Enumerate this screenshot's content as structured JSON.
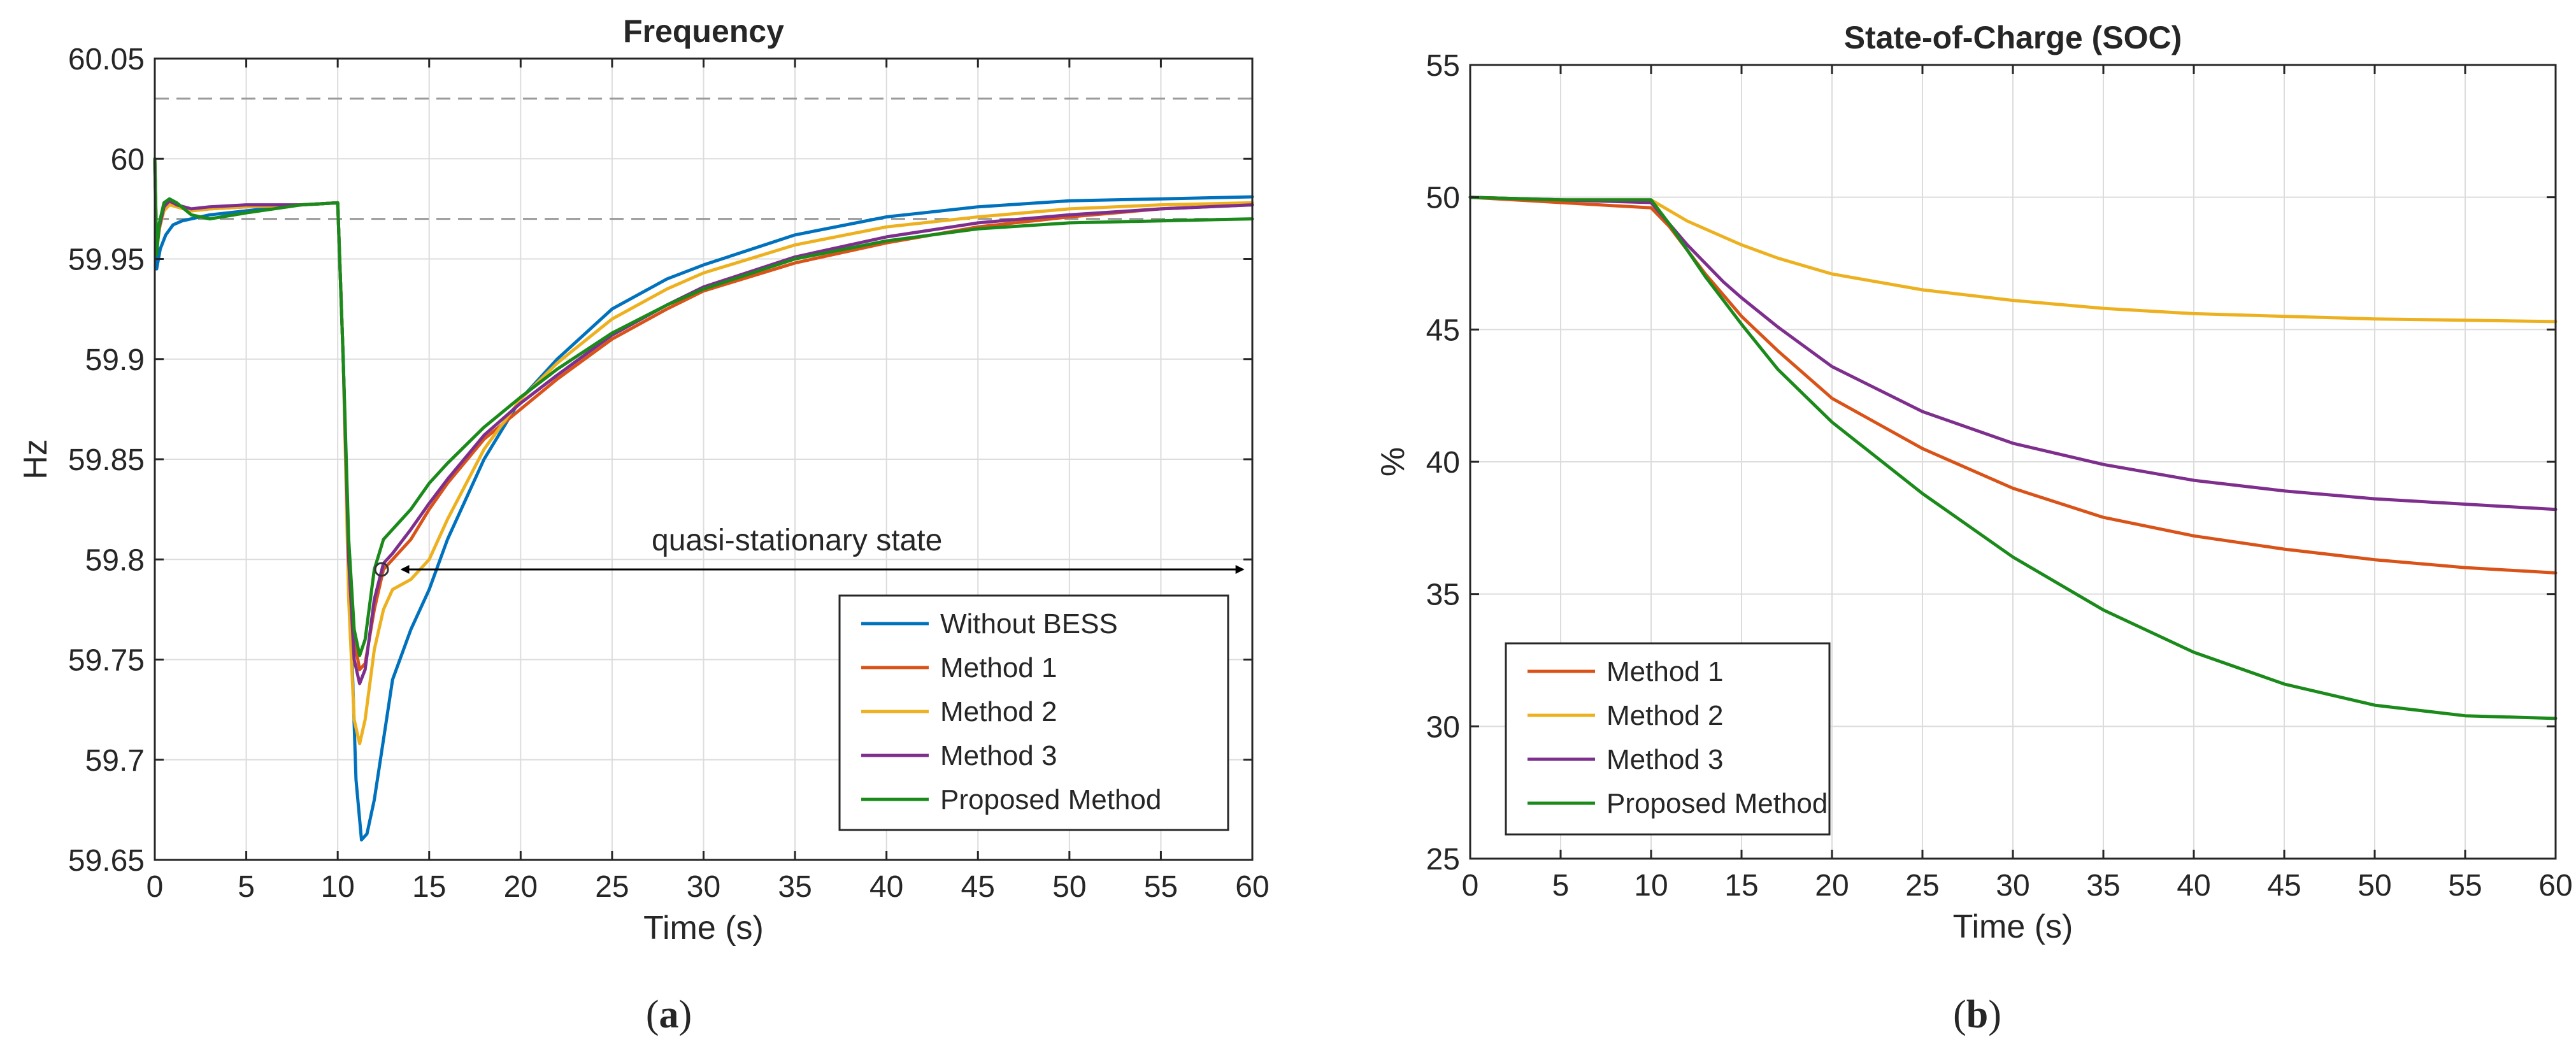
{
  "chart_data": [
    {
      "type": "line",
      "panel_label": "a",
      "title": "Frequency",
      "xlabel": "Time (s)",
      "ylabel": "Hz",
      "xlim": [
        0,
        60
      ],
      "ylim": [
        59.65,
        60.05
      ],
      "xticks": [
        0,
        5,
        10,
        15,
        20,
        25,
        30,
        35,
        40,
        45,
        50,
        55,
        60
      ],
      "xtick_labels": [
        "0",
        "5",
        "10",
        "15",
        "20",
        "25",
        "30",
        "35",
        "40",
        "45",
        "50",
        "55",
        "60"
      ],
      "yticks": [
        59.65,
        59.7,
        59.75,
        59.8,
        59.85,
        59.9,
        59.95,
        60,
        60.05
      ],
      "ytick_labels": [
        "59.65",
        "59.7",
        "59.75",
        "59.8",
        "59.85",
        "59.9",
        "59.95",
        "60",
        "60.05"
      ],
      "grid": true,
      "legend_position": "bottom-right",
      "reference_lines": [
        60.03,
        59.97
      ],
      "annotation": {
        "text": "quasi-stationary state",
        "arrow_from_x": 13.5,
        "arrow_to_x": 59.5,
        "arrow_y": 59.795,
        "marker_x": 12.4,
        "marker_y": 59.795
      },
      "series": [
        {
          "name": "Without BESS",
          "color": "#0072BD",
          "x": [
            0,
            0.1,
            0.3,
            0.6,
            1,
            1.5,
            2,
            3,
            5,
            8,
            10,
            10.3,
            10.6,
            11,
            11.3,
            11.6,
            12,
            12.5,
            13,
            14,
            15,
            16,
            18,
            20,
            22,
            25,
            28,
            30,
            35,
            40,
            45,
            50,
            55,
            60
          ],
          "y": [
            60.0,
            59.945,
            59.955,
            59.962,
            59.967,
            59.969,
            59.97,
            59.972,
            59.974,
            59.977,
            59.978,
            59.9,
            59.8,
            59.69,
            59.66,
            59.663,
            59.68,
            59.71,
            59.74,
            59.765,
            59.785,
            59.81,
            59.85,
            59.88,
            59.9,
            59.925,
            59.94,
            59.947,
            59.962,
            59.971,
            59.976,
            59.979,
            59.98,
            59.981
          ]
        },
        {
          "name": "Method 1",
          "color": "#D95319",
          "x": [
            0,
            0.1,
            0.25,
            0.5,
            0.8,
            1.2,
            2,
            3,
            5,
            8,
            10,
            10.3,
            10.6,
            10.9,
            11.2,
            11.5,
            12,
            12.5,
            13,
            14,
            15,
            16,
            18,
            20,
            22,
            25,
            28,
            30,
            35,
            40,
            45,
            50,
            55,
            60
          ],
          "y": [
            60.0,
            59.955,
            59.965,
            59.975,
            59.978,
            59.976,
            59.974,
            59.975,
            59.976,
            59.977,
            59.978,
            59.9,
            59.8,
            59.76,
            59.745,
            59.748,
            59.775,
            59.795,
            59.8,
            59.81,
            59.825,
            59.838,
            59.86,
            59.875,
            59.89,
            59.91,
            59.925,
            59.934,
            59.948,
            59.958,
            59.966,
            59.971,
            59.975,
            59.977
          ]
        },
        {
          "name": "Method 2",
          "color": "#EDB120",
          "x": [
            0,
            0.1,
            0.25,
            0.5,
            0.8,
            1.2,
            2,
            3,
            5,
            8,
            10,
            10.3,
            10.6,
            10.9,
            11.2,
            11.5,
            12,
            12.5,
            13,
            14,
            15,
            16,
            18,
            20,
            22,
            25,
            28,
            30,
            35,
            40,
            45,
            50,
            55,
            60
          ],
          "y": [
            60.0,
            59.955,
            59.965,
            59.974,
            59.977,
            59.976,
            59.974,
            59.975,
            59.976,
            59.977,
            59.978,
            59.9,
            59.78,
            59.72,
            59.708,
            59.72,
            59.755,
            59.775,
            59.785,
            59.79,
            59.8,
            59.82,
            59.855,
            59.88,
            59.898,
            59.92,
            59.935,
            59.943,
            59.957,
            59.966,
            59.971,
            59.975,
            59.977,
            59.978
          ]
        },
        {
          "name": "Method 3",
          "color": "#7E2F8E",
          "x": [
            0,
            0.1,
            0.25,
            0.5,
            0.8,
            1.2,
            2,
            3,
            5,
            8,
            10,
            10.3,
            10.6,
            10.9,
            11.2,
            11.5,
            12,
            12.5,
            13,
            14,
            15,
            16,
            18,
            20,
            22,
            25,
            28,
            30,
            35,
            40,
            45,
            50,
            55,
            60
          ],
          "y": [
            60.0,
            59.955,
            59.966,
            59.976,
            59.979,
            59.977,
            59.975,
            59.976,
            59.977,
            59.977,
            59.978,
            59.9,
            59.8,
            59.75,
            59.738,
            59.745,
            59.78,
            59.798,
            59.803,
            59.815,
            59.828,
            59.84,
            59.862,
            59.878,
            59.892,
            59.912,
            59.927,
            59.936,
            59.951,
            59.961,
            59.968,
            59.972,
            59.975,
            59.977
          ]
        },
        {
          "name": "Proposed Method",
          "color": "#1A8A1A",
          "x": [
            0,
            0.1,
            0.25,
            0.5,
            0.8,
            1.2,
            2,
            3,
            5,
            8,
            10,
            10.3,
            10.6,
            10.9,
            11.2,
            11.5,
            12,
            12.5,
            13,
            14,
            15,
            16,
            18,
            20,
            22,
            25,
            28,
            30,
            35,
            40,
            45,
            50,
            55,
            60
          ],
          "y": [
            60.0,
            59.952,
            59.968,
            59.978,
            59.98,
            59.978,
            59.972,
            59.97,
            59.973,
            59.977,
            59.978,
            59.9,
            59.81,
            59.765,
            59.752,
            59.76,
            59.795,
            59.81,
            59.815,
            59.825,
            59.838,
            59.848,
            59.866,
            59.881,
            59.895,
            59.913,
            59.927,
            59.935,
            59.95,
            59.959,
            59.965,
            59.968,
            59.969,
            59.97
          ]
        }
      ]
    },
    {
      "type": "line",
      "panel_label": "b",
      "title": "State-of-Charge (SOC)",
      "xlabel": "Time (s)",
      "ylabel": "%",
      "xlim": [
        0,
        60
      ],
      "ylim": [
        25,
        55
      ],
      "xticks": [
        0,
        5,
        10,
        15,
        20,
        25,
        30,
        35,
        40,
        45,
        50,
        55,
        60
      ],
      "xtick_labels": [
        "0",
        "5",
        "10",
        "15",
        "20",
        "25",
        "30",
        "35",
        "40",
        "45",
        "50",
        "55",
        "60"
      ],
      "yticks": [
        25,
        30,
        35,
        40,
        45,
        50,
        55
      ],
      "ytick_labels": [
        "25",
        "30",
        "35",
        "40",
        "45",
        "50",
        "55"
      ],
      "grid": true,
      "legend_position": "bottom-left",
      "series": [
        {
          "name": "Method 1",
          "color": "#D95319",
          "x": [
            0,
            5,
            10,
            11,
            12,
            13,
            14,
            15,
            17,
            20,
            25,
            30,
            35,
            40,
            45,
            50,
            55,
            60
          ],
          "y": [
            50.0,
            49.8,
            49.6,
            48.9,
            48.0,
            47.1,
            46.3,
            45.5,
            44.2,
            42.4,
            40.5,
            39.0,
            37.9,
            37.2,
            36.7,
            36.3,
            36.0,
            35.8
          ]
        },
        {
          "name": "Method 2",
          "color": "#EDB120",
          "x": [
            0,
            5,
            10,
            11,
            12,
            13,
            14,
            15,
            17,
            20,
            25,
            30,
            35,
            40,
            45,
            50,
            55,
            60
          ],
          "y": [
            50.0,
            49.9,
            49.9,
            49.5,
            49.1,
            48.8,
            48.5,
            48.2,
            47.7,
            47.1,
            46.5,
            46.1,
            45.8,
            45.6,
            45.5,
            45.4,
            45.35,
            45.3
          ]
        },
        {
          "name": "Method 3",
          "color": "#7E2F8E",
          "x": [
            0,
            5,
            10,
            11,
            12,
            13,
            14,
            15,
            17,
            20,
            25,
            30,
            35,
            40,
            45,
            50,
            55,
            60
          ],
          "y": [
            50.0,
            49.9,
            49.8,
            49.0,
            48.2,
            47.5,
            46.8,
            46.2,
            45.1,
            43.6,
            41.9,
            40.7,
            39.9,
            39.3,
            38.9,
            38.6,
            38.4,
            38.2
          ]
        },
        {
          "name": "Proposed Method",
          "color": "#1A8A1A",
          "x": [
            0,
            5,
            10,
            11,
            12,
            13,
            14,
            15,
            17,
            20,
            25,
            30,
            35,
            40,
            45,
            50,
            55,
            60
          ],
          "y": [
            50.0,
            49.9,
            49.9,
            49.0,
            48.0,
            47.0,
            46.1,
            45.2,
            43.5,
            41.5,
            38.8,
            36.4,
            34.4,
            32.8,
            31.6,
            30.8,
            30.4,
            30.3
          ]
        }
      ]
    }
  ]
}
